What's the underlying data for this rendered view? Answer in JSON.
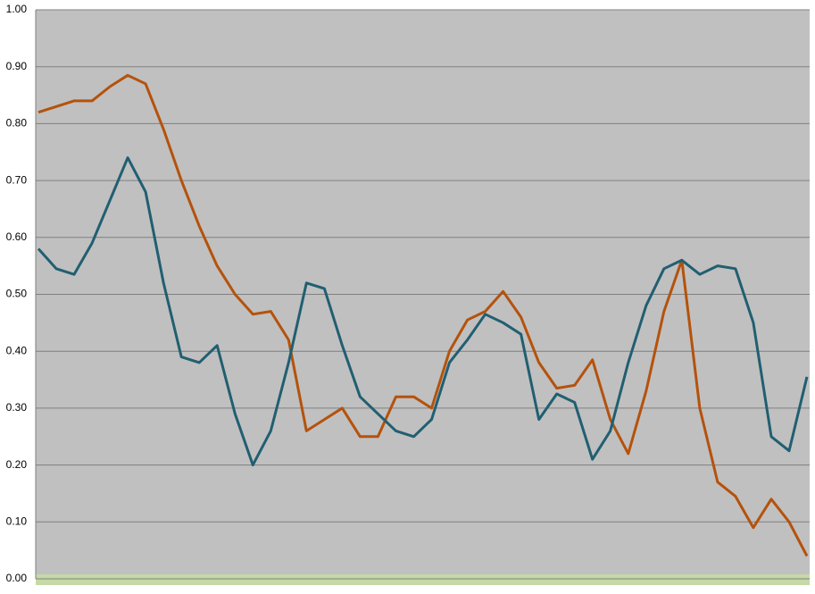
{
  "chart_data": {
    "type": "line",
    "categories": [
      null,
      null,
      null,
      null,
      null,
      null,
      null,
      null,
      null,
      null,
      null,
      null,
      null,
      null,
      null,
      null,
      null,
      null,
      null,
      null,
      null,
      null,
      null,
      null,
      null,
      null,
      null,
      null,
      null,
      null,
      null,
      null,
      null,
      null,
      null,
      null,
      null,
      null,
      null,
      null,
      null,
      null,
      null,
      null
    ],
    "series": [
      {
        "color": "#b5520c",
        "values": [
          0.82,
          0.83,
          0.84,
          0.84,
          0.865,
          0.885,
          0.87,
          0.79,
          0.7,
          0.62,
          0.55,
          0.5,
          0.465,
          0.47,
          0.42,
          0.26,
          0.28,
          0.3,
          0.25,
          0.25,
          0.32,
          0.32,
          0.3,
          0.4,
          0.455,
          0.47,
          0.505,
          0.46,
          0.38,
          0.335,
          0.34,
          0.385,
          0.28,
          0.22,
          0.33,
          0.47,
          0.56,
          0.3,
          0.17,
          0.145,
          0.09,
          0.14,
          0.1,
          0.04
        ]
      },
      {
        "color": "#215f71",
        "values": [
          0.58,
          0.545,
          0.535,
          0.59,
          0.665,
          0.74,
          0.68,
          0.52,
          0.39,
          0.38,
          0.41,
          0.29,
          0.2,
          0.26,
          0.38,
          0.52,
          0.51,
          0.41,
          0.32,
          0.29,
          0.26,
          0.25,
          0.28,
          0.38,
          0.42,
          0.465,
          0.45,
          0.43,
          0.28,
          0.325,
          0.31,
          0.21,
          0.26,
          0.38,
          0.48,
          0.545,
          0.56,
          0.535,
          0.55,
          0.545,
          0.45,
          0.25,
          0.225,
          0.355
        ]
      }
    ],
    "ylim": [
      0,
      1
    ],
    "yticks": [
      {
        "value": 0,
        "label": "0.00"
      },
      {
        "value": 0.1,
        "label": "0.10"
      },
      {
        "value": 0.2,
        "label": "0.20"
      },
      {
        "value": 0.3,
        "label": "0.30"
      },
      {
        "value": 0.4,
        "label": "0.40"
      },
      {
        "value": 0.5,
        "label": "0.50"
      },
      {
        "value": 0.6,
        "label": "0.60"
      },
      {
        "value": 0.7,
        "label": "0.70"
      },
      {
        "value": 0.8,
        "label": "0.80"
      },
      {
        "value": 0.9,
        "label": "0.90"
      },
      {
        "value": 1,
        "label": "1.00"
      }
    ],
    "grid": true
  }
}
